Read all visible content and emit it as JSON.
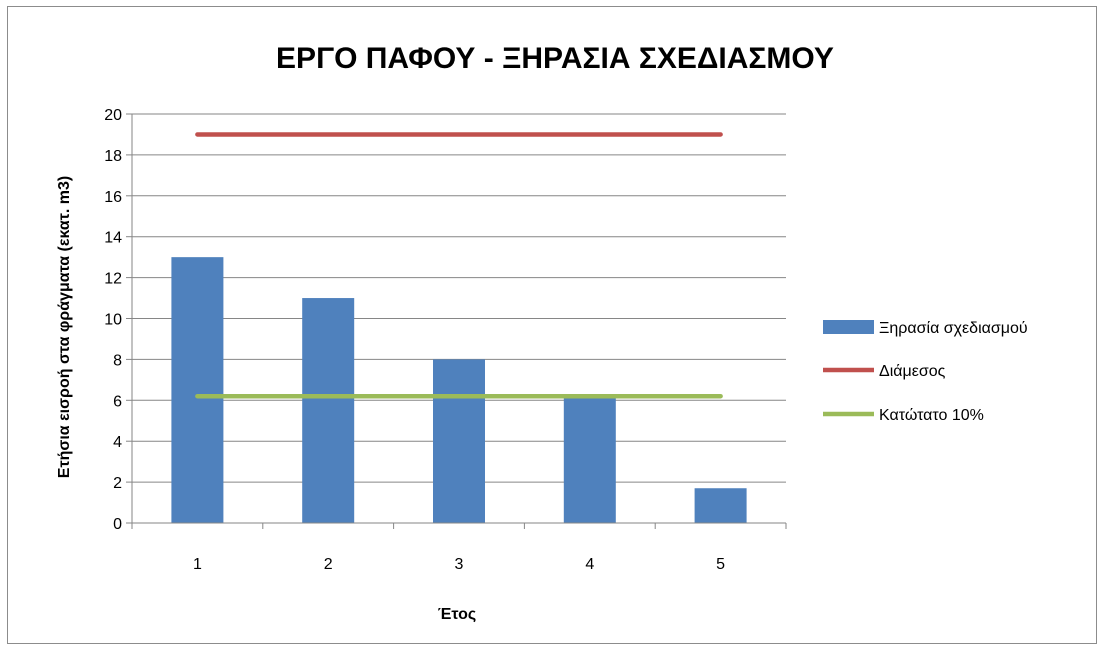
{
  "chart_data": {
    "type": "bar",
    "title": "ΕΡΓΟ ΠΑΦΟΥ - ΞΗΡΑΣΙΑ ΣΧΕΔΙΑΣΜΟΥ",
    "xlabel": "Έτος",
    "ylabel": "Ετήσια εισροή στα φράγματα (εκατ. m3)",
    "categories": [
      "1",
      "2",
      "3",
      "4",
      "5"
    ],
    "ylim": [
      0,
      20
    ],
    "yticks": [
      0,
      2,
      4,
      6,
      8,
      10,
      12,
      14,
      16,
      18,
      20
    ],
    "grid": true,
    "legend_position": "right",
    "series": [
      {
        "name": "Ξηρασία σχεδιασμού",
        "kind": "bar",
        "color": "#4f81bd",
        "values": [
          13,
          11,
          8,
          6.3,
          1.7
        ]
      },
      {
        "name": "Διάμεσος",
        "kind": "line",
        "color": "#c0504d",
        "values": [
          19,
          19,
          19,
          19,
          19
        ]
      },
      {
        "name": "Κατώτατο 10%",
        "kind": "line",
        "color": "#9bbb59",
        "values": [
          6.2,
          6.2,
          6.2,
          6.2,
          6.2
        ]
      }
    ]
  }
}
